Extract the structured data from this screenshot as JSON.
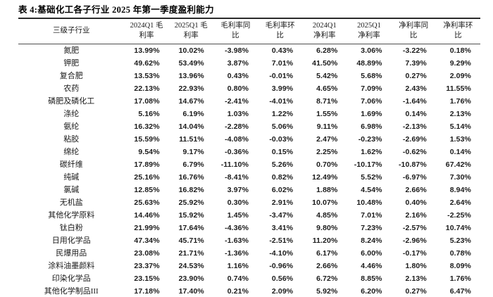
{
  "title": "表 4:基础化工各子行业 2025 年第一季度盈利能力",
  "table": {
    "headers": [
      {
        "line1": "三级子行业",
        "line2": ""
      },
      {
        "line1": "2024Q1 毛",
        "line2": "利率"
      },
      {
        "line1": "2025Q1 毛",
        "line2": "利率"
      },
      {
        "line1": "毛利率同",
        "line2": "比"
      },
      {
        "line1": "毛利率环",
        "line2": "比"
      },
      {
        "line1": "2024Q1",
        "line2": "净利率"
      },
      {
        "line1": "2025Q1",
        "line2": "净利率"
      },
      {
        "line1": "净利率同",
        "line2": "比"
      },
      {
        "line1": "净利率环",
        "line2": "比"
      }
    ],
    "rows": [
      [
        "氮肥",
        "13.99%",
        "10.02%",
        "-3.98%",
        "0.43%",
        "6.28%",
        "3.06%",
        "-3.22%",
        "0.18%"
      ],
      [
        "钾肥",
        "49.62%",
        "53.49%",
        "3.87%",
        "7.01%",
        "41.50%",
        "48.89%",
        "7.39%",
        "9.29%"
      ],
      [
        "复合肥",
        "13.53%",
        "13.96%",
        "0.43%",
        "-0.01%",
        "5.42%",
        "5.68%",
        "0.27%",
        "2.09%"
      ],
      [
        "农药",
        "22.13%",
        "22.93%",
        "0.80%",
        "3.99%",
        "4.65%",
        "7.09%",
        "2.43%",
        "11.55%"
      ],
      [
        "磷肥及磷化工",
        "17.08%",
        "14.67%",
        "-2.41%",
        "-4.01%",
        "8.71%",
        "7.06%",
        "-1.64%",
        "1.76%"
      ],
      [
        "涤纶",
        "5.16%",
        "6.19%",
        "1.03%",
        "1.22%",
        "1.55%",
        "1.69%",
        "0.14%",
        "2.13%"
      ],
      [
        "氨纶",
        "16.32%",
        "14.04%",
        "-2.28%",
        "5.06%",
        "9.11%",
        "6.98%",
        "-2.13%",
        "5.14%"
      ],
      [
        "粘胶",
        "15.59%",
        "11.51%",
        "-4.08%",
        "-0.03%",
        "2.47%",
        "-0.23%",
        "-2.69%",
        "1.53%"
      ],
      [
        "绵纶",
        "9.54%",
        "9.17%",
        "-0.36%",
        "0.15%",
        "2.25%",
        "1.62%",
        "-0.62%",
        "0.14%"
      ],
      [
        "碳纤维",
        "17.89%",
        "6.79%",
        "-11.10%",
        "5.26%",
        "0.70%",
        "-10.17%",
        "-10.87%",
        "67.42%"
      ],
      [
        "纯碱",
        "25.16%",
        "16.76%",
        "-8.41%",
        "0.82%",
        "12.49%",
        "5.52%",
        "-6.97%",
        "7.30%"
      ],
      [
        "氯碱",
        "12.85%",
        "16.82%",
        "3.97%",
        "6.02%",
        "1.88%",
        "4.54%",
        "2.66%",
        "8.94%"
      ],
      [
        "无机盐",
        "25.63%",
        "25.92%",
        "0.30%",
        "2.91%",
        "10.07%",
        "10.48%",
        "0.40%",
        "2.64%"
      ],
      [
        "其他化学原料",
        "14.46%",
        "15.92%",
        "1.45%",
        "-3.47%",
        "4.85%",
        "7.01%",
        "2.16%",
        "-2.25%"
      ],
      [
        "钛白粉",
        "21.99%",
        "17.64%",
        "-4.36%",
        "3.41%",
        "9.80%",
        "7.23%",
        "-2.57%",
        "10.74%"
      ],
      [
        "日用化学品",
        "47.34%",
        "45.71%",
        "-1.63%",
        "-2.51%",
        "11.20%",
        "8.24%",
        "-2.96%",
        "5.23%"
      ],
      [
        "民爆用品",
        "23.08%",
        "21.71%",
        "-1.36%",
        "-4.10%",
        "6.17%",
        "6.00%",
        "-0.17%",
        "0.78%"
      ],
      [
        "涂料油墨颜料",
        "23.37%",
        "24.53%",
        "1.16%",
        "-0.96%",
        "2.66%",
        "4.46%",
        "1.80%",
        "8.09%"
      ],
      [
        "印染化学品",
        "23.15%",
        "23.90%",
        "0.74%",
        "0.56%",
        "6.72%",
        "8.85%",
        "2.13%",
        "1.76%"
      ],
      [
        "其他化学制品III",
        "17.18%",
        "17.40%",
        "0.21%",
        "2.09%",
        "5.92%",
        "6.20%",
        "0.27%",
        "6.47%"
      ]
    ]
  },
  "colors": {
    "text": "#1a1a1a",
    "rule_heavy": "#2b2b2b",
    "rule_light": "#4d4d4d",
    "background": "#ffffff"
  }
}
